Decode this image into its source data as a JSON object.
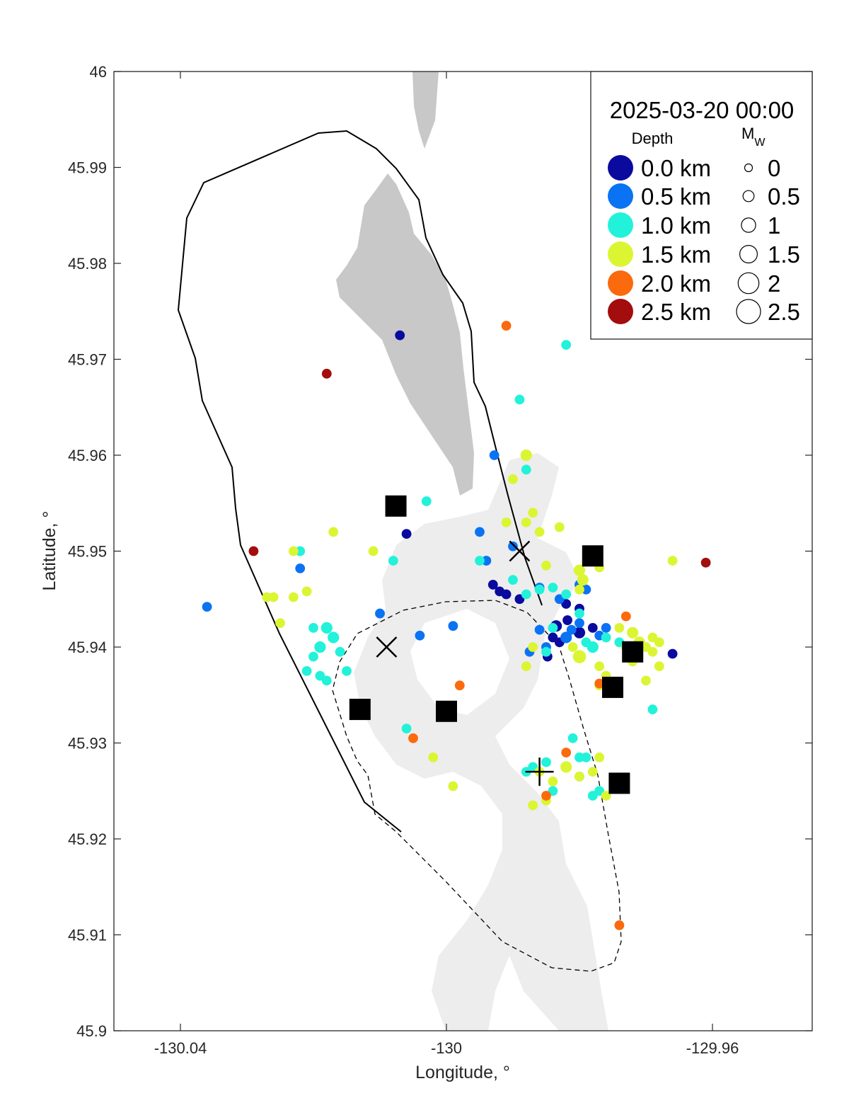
{
  "chart_data": {
    "type": "scatter",
    "title": "",
    "xlabel": "Longitude, °",
    "ylabel": "Latitude, °",
    "xlim": [
      -130.05,
      -129.945
    ],
    "ylim": [
      45.9,
      46.0
    ],
    "xticks": [
      -130.04,
      -130,
      -129.96
    ],
    "xtick_labels": [
      "-130.04",
      "-130",
      "-129.96"
    ],
    "yticks": [
      45.9,
      45.91,
      45.92,
      45.93,
      45.94,
      45.95,
      45.96,
      45.97,
      45.98,
      45.99,
      46.0
    ],
    "ytick_labels": [
      "45.9",
      "45.91",
      "45.92",
      "45.93",
      "45.94",
      "45.95",
      "45.96",
      "45.97",
      "45.98",
      "45.99",
      "46"
    ],
    "colors": {
      "d0": "#0a0a9e",
      "d05": "#0a73f4",
      "d10": "#22f2da",
      "d15": "#dcf532",
      "d20": "#fb6a0c",
      "d25": "#a30d0d",
      "relief": "#c8c8c8",
      "relief_light": "#ededed"
    },
    "legend": {
      "timestamp": "2025-03-20 00:00",
      "depth_header": "Depth",
      "mw_header_main": "M",
      "mw_header_sub": "W",
      "depth_items": [
        {
          "label": "0.0 km",
          "depth": 0.0
        },
        {
          "label": "0.5 km",
          "depth": 0.5
        },
        {
          "label": "1.0 km",
          "depth": 1.0
        },
        {
          "label": "1.5 km",
          "depth": 1.5
        },
        {
          "label": "2.0 km",
          "depth": 2.0
        },
        {
          "label": "2.5 km",
          "depth": 2.5
        }
      ],
      "mw_items": [
        {
          "label": "0",
          "mw": 0
        },
        {
          "label": "0.5",
          "mw": 0.5
        },
        {
          "label": "1",
          "mw": 1
        },
        {
          "label": "1.5",
          "mw": 1.5
        },
        {
          "label": "2",
          "mw": 2
        },
        {
          "label": "2.5",
          "mw": 2.5
        }
      ]
    },
    "caldera_rim": [
      [
        -130.0111,
        45.9989
      ],
      [
        -130.0064,
        45.9987
      ],
      [
        -130.0043,
        45.9975
      ],
      [
        -130.003,
        45.9963
      ],
      [
        -130.0022,
        45.995
      ],
      [
        -130.0021,
        45.9938
      ],
      [
        -130.001,
        45.9925
      ],
      [
        -129.9998,
        45.9913
      ],
      [
        -129.999,
        45.9898
      ],
      [
        -129.9985,
        45.9885
      ],
      [
        -129.998,
        45.9874
      ],
      [
        -129.9978,
        45.986
      ],
      [
        -129.997,
        45.9848
      ],
      [
        -129.996,
        45.9837
      ],
      [
        -129.9952,
        45.9823
      ],
      [
        -129.9938,
        45.981
      ],
      [
        -129.9924,
        45.9799
      ],
      [
        -129.9916,
        45.9784
      ],
      [
        -129.9908,
        45.9771
      ],
      [
        -129.99,
        45.9758
      ],
      [
        -129.9888,
        45.9746
      ],
      [
        -129.9876,
        45.9733
      ],
      [
        -129.9866,
        45.972
      ],
      [
        -129.9856,
        45.9706
      ],
      [
        -129.9848,
        45.9693
      ],
      [
        -129.984,
        45.9681
      ],
      [
        -129.9832,
        45.9668
      ],
      [
        -129.9824,
        45.9655
      ],
      [
        -129.9816,
        45.9642
      ],
      [
        -129.9806,
        45.963
      ],
      [
        -129.98,
        45.9617
      ],
      [
        -129.9792,
        45.9604
      ],
      [
        -129.9782,
        45.9591
      ],
      [
        -129.9774,
        45.9578
      ],
      [
        -129.9766,
        45.9566
      ],
      [
        -129.9758,
        45.9553
      ],
      [
        -129.975,
        45.954
      ],
      [
        -130.002,
        45.945
      ],
      [
        -130.008,
        45.9345
      ],
      [
        -130.0105,
        45.931
      ],
      [
        -130.014,
        45.9255
      ],
      [
        -130.017,
        45.922
      ],
      [
        -130.02,
        45.918
      ],
      [
        -130.023,
        45.9142
      ],
      [
        -130.0265,
        45.91
      ],
      [
        -130.03,
        45.906
      ],
      [
        -130.032,
        45.903
      ],
      [
        -130.0335,
        45.901
      ],
      [
        -130.0355,
        45.899
      ],
      [
        -130.037,
        45.8975
      ],
      [
        -130.038,
        45.8962
      ],
      [
        -130.0395,
        45.895
      ],
      [
        -130.0405,
        45.8935
      ]
    ],
    "series": [
      {
        "name": "0.0 km",
        "depth": 0.0,
        "points": [
          [
            -130.007,
            45.9725,
            1
          ],
          [
            -129.982,
            45.9445,
            1
          ],
          [
            -129.98,
            45.9415,
            1.5
          ],
          [
            -129.984,
            45.941,
            1
          ],
          [
            -129.9848,
            45.939,
            1
          ],
          [
            -129.9835,
            45.9422,
            1.5
          ],
          [
            -129.9818,
            45.9428,
            1
          ],
          [
            -129.993,
            45.9465,
            1
          ],
          [
            -129.992,
            45.9458,
            1
          ],
          [
            -129.991,
            45.9455,
            1
          ],
          [
            -129.989,
            45.945,
            1
          ],
          [
            -129.98,
            45.944,
            1
          ],
          [
            -129.978,
            45.942,
            1
          ],
          [
            -129.983,
            45.9405,
            1
          ],
          [
            -129.966,
            45.9393,
            1
          ],
          [
            -130.006,
            45.9518,
            1
          ]
        ]
      },
      {
        "name": "0.5 km",
        "depth": 0.5,
        "points": [
          [
            -130.036,
            45.9442,
            1
          ],
          [
            -130.022,
            45.9482,
            1
          ],
          [
            -130.01,
            45.9435,
            1
          ],
          [
            -130.004,
            45.9412,
            1
          ],
          [
            -129.999,
            45.9422,
            1
          ],
          [
            -129.995,
            45.952,
            1
          ],
          [
            -129.994,
            45.949,
            1
          ],
          [
            -129.99,
            45.9505,
            1
          ],
          [
            -129.986,
            45.9462,
            1
          ],
          [
            -129.985,
            45.94,
            1
          ],
          [
            -129.983,
            45.945,
            1
          ],
          [
            -129.979,
            45.946,
            1
          ],
          [
            -129.976,
            45.942,
            1
          ],
          [
            -129.977,
            45.9412,
            1
          ],
          [
            -129.98,
            45.9425,
            1
          ],
          [
            -129.9812,
            45.9418,
            1
          ],
          [
            -129.986,
            45.9418,
            1
          ],
          [
            -129.9875,
            45.9395,
            1
          ],
          [
            -129.982,
            45.941,
            1.5
          ],
          [
            -129.9928,
            45.96,
            1
          ],
          [
            -129.98,
            45.9465,
            1
          ]
        ]
      },
      {
        "name": "1.0 km",
        "depth": 1.0,
        "points": [
          [
            -129.995,
            45.949,
            1
          ],
          [
            -129.988,
            45.9585,
            1
          ],
          [
            -129.982,
            45.9715,
            1
          ],
          [
            -129.989,
            45.9658,
            1
          ],
          [
            -130.003,
            45.9552,
            1
          ],
          [
            -130.008,
            45.949,
            1
          ],
          [
            -130.022,
            45.95,
            1
          ],
          [
            -130.02,
            45.942,
            1
          ],
          [
            -130.018,
            45.942,
            1.5
          ],
          [
            -130.017,
            45.941,
            1.5
          ],
          [
            -130.019,
            45.94,
            1.5
          ],
          [
            -130.02,
            45.939,
            1
          ],
          [
            -130.021,
            45.9375,
            1
          ],
          [
            -130.018,
            45.9365,
            1
          ],
          [
            -130.019,
            45.937,
            1
          ],
          [
            -130.015,
            45.9375,
            1
          ],
          [
            -130.016,
            45.9395,
            1
          ],
          [
            -130.006,
            45.9315,
            1
          ],
          [
            -129.99,
            45.947,
            1
          ],
          [
            -129.988,
            45.9455,
            1
          ],
          [
            -129.986,
            45.946,
            1
          ],
          [
            -129.984,
            45.9462,
            1
          ],
          [
            -129.982,
            45.9455,
            1
          ],
          [
            -129.98,
            45.9435,
            1
          ],
          [
            -129.979,
            45.9405,
            1
          ],
          [
            -129.978,
            45.94,
            1.5
          ],
          [
            -129.976,
            45.941,
            1
          ],
          [
            -129.974,
            45.9405,
            1
          ],
          [
            -129.984,
            45.942,
            1
          ],
          [
            -129.985,
            45.9395,
            1
          ],
          [
            -129.981,
            45.9305,
            1
          ],
          [
            -129.98,
            45.9265,
            1
          ],
          [
            -129.984,
            45.925,
            1
          ],
          [
            -129.985,
            45.928,
            1
          ],
          [
            -129.987,
            45.9275,
            1
          ],
          [
            -129.988,
            45.927,
            1
          ],
          [
            -129.98,
            45.9285,
            1
          ],
          [
            -129.979,
            45.9285,
            1
          ],
          [
            -129.977,
            45.925,
            1
          ],
          [
            -129.978,
            45.9245,
            1
          ],
          [
            -129.969,
            45.9335,
            1
          ]
        ]
      },
      {
        "name": "1.5 km",
        "depth": 1.5,
        "points": [
          [
            -129.988,
            45.96,
            1.5
          ],
          [
            -129.99,
            45.9575,
            1
          ],
          [
            -129.987,
            45.954,
            1
          ],
          [
            -129.986,
            45.952,
            1
          ],
          [
            -129.983,
            45.9525,
            1
          ],
          [
            -129.985,
            45.9485,
            1
          ],
          [
            -129.98,
            45.948,
            1.5
          ],
          [
            -129.9795,
            45.947,
            1.5
          ],
          [
            -129.978,
            45.9492,
            1.5
          ],
          [
            -129.977,
            45.9483,
            1
          ],
          [
            -129.98,
            45.946,
            1
          ],
          [
            -129.988,
            45.953,
            1
          ],
          [
            -129.987,
            45.94,
            1
          ],
          [
            -129.98,
            45.939,
            2
          ],
          [
            -129.976,
            45.937,
            1
          ],
          [
            -129.977,
            45.936,
            1
          ],
          [
            -129.974,
            45.942,
            1
          ],
          [
            -129.973,
            45.94,
            1
          ],
          [
            -129.972,
            45.9415,
            1.5
          ],
          [
            -129.971,
            45.9405,
            1.5
          ],
          [
            -129.97,
            45.94,
            1
          ],
          [
            -129.969,
            45.941,
            1
          ],
          [
            -129.968,
            45.9405,
            1
          ],
          [
            -129.969,
            45.9395,
            1
          ],
          [
            -129.968,
            45.938,
            1
          ],
          [
            -129.972,
            45.9385,
            1
          ],
          [
            -129.97,
            45.9365,
            1
          ],
          [
            -129.999,
            45.9255,
            1
          ],
          [
            -130.002,
            45.9285,
            1
          ],
          [
            -130.023,
            45.9452,
            1
          ],
          [
            -130.021,
            45.9458,
            1
          ],
          [
            -130.023,
            45.95,
            1
          ],
          [
            -130.025,
            45.9425,
            1
          ],
          [
            -130.026,
            45.9452,
            1
          ],
          [
            -129.991,
            45.953,
            1
          ],
          [
            -129.986,
            45.927,
            1
          ],
          [
            -129.984,
            45.926,
            1
          ],
          [
            -129.987,
            45.9235,
            1
          ],
          [
            -129.985,
            45.924,
            1
          ],
          [
            -129.982,
            45.9275,
            1.5
          ],
          [
            -129.98,
            45.9265,
            1
          ],
          [
            -129.978,
            45.927,
            1
          ],
          [
            -129.977,
            45.9285,
            1
          ],
          [
            -129.976,
            45.9245,
            1
          ],
          [
            -130.011,
            45.95,
            1
          ],
          [
            -129.966,
            45.949,
            1
          ],
          [
            -129.988,
            45.938,
            1
          ],
          [
            -129.981,
            45.94,
            1
          ],
          [
            -129.977,
            45.938,
            1
          ],
          [
            -130.017,
            45.952,
            1
          ],
          [
            -130.027,
            45.9452,
            1
          ]
        ]
      },
      {
        "name": "2.0 km",
        "depth": 2.0,
        "points": [
          [
            -129.991,
            45.9735,
            1
          ],
          [
            -129.973,
            45.9432,
            1
          ],
          [
            -129.982,
            45.929,
            1
          ],
          [
            -129.974,
            45.911,
            1
          ],
          [
            -130.005,
            45.9305,
            1
          ],
          [
            -129.998,
            45.936,
            1
          ],
          [
            -129.977,
            45.9362,
            1
          ],
          [
            -129.985,
            45.9245,
            1
          ]
        ]
      },
      {
        "name": "2.5 km",
        "depth": 2.5,
        "points": [
          [
            -130.018,
            45.9685,
            1
          ],
          [
            -130.029,
            45.95,
            1
          ],
          [
            -129.961,
            45.9488,
            1
          ]
        ]
      }
    ],
    "stations_square": [
      [
        -130.0076,
        45.9547
      ],
      [
        -129.978,
        45.9495
      ],
      [
        -129.975,
        45.9358
      ],
      [
        -129.972,
        45.9395
      ],
      [
        -130.013,
        45.9335
      ],
      [
        -130.0,
        45.9333
      ],
      [
        -129.974,
        45.9258
      ]
    ],
    "markers_x": [
      [
        -129.989,
        45.95
      ],
      [
        -130.009,
        45.94
      ]
    ],
    "markers_plus": [
      [
        -129.986,
        45.927
      ]
    ]
  }
}
